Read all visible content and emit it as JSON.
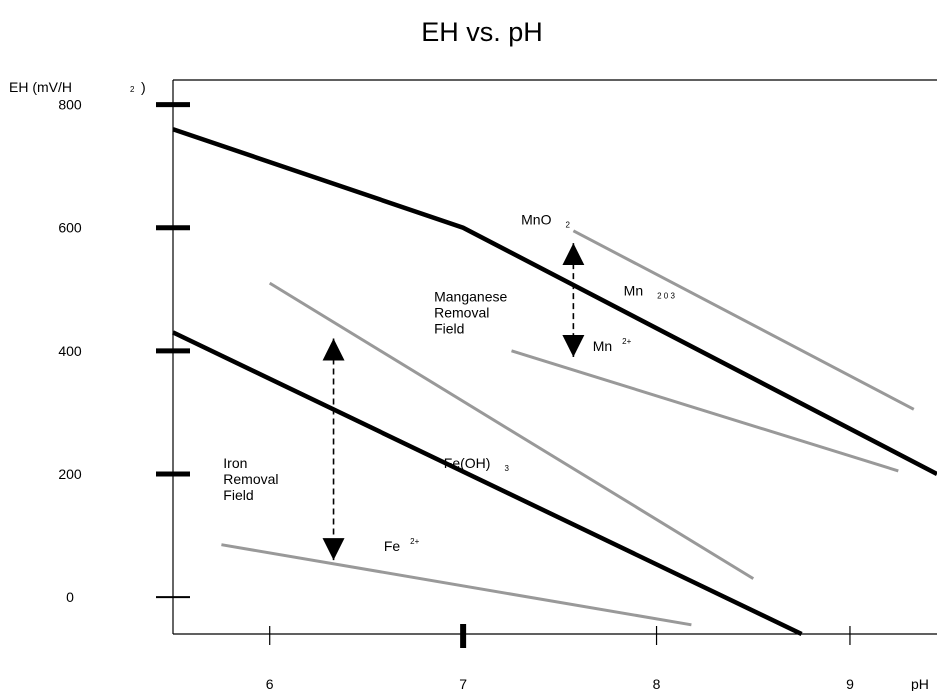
{
  "chart_data": {
    "type": "line",
    "title": "EH vs. pH",
    "ylabel": "EH (mV/H",
    "ylabel_sub": "2",
    "ylabel_close": ")",
    "xlabel": "pH",
    "xlim": [
      5.5,
      9.45
    ],
    "ylim": [
      -60,
      840
    ],
    "x_ticks": [
      6,
      7,
      8,
      9
    ],
    "x_tick_labels": [
      "6",
      "7",
      "8",
      "9"
    ],
    "y_ticks": [
      800,
      600,
      400,
      200,
      0
    ],
    "y_tick_labels": [
      "800",
      "600",
      "400",
      "200",
      "0"
    ],
    "grid": false,
    "series": [
      {
        "color": "#000000",
        "weight": "heavy",
        "points": [
          [
            5.5,
            760
          ],
          [
            7.0,
            600
          ],
          [
            9.45,
            200
          ]
        ]
      },
      {
        "color": "#000000",
        "weight": "heavy",
        "points": [
          [
            5.5,
            430
          ],
          [
            8.75,
            -60
          ]
        ]
      },
      {
        "color": "#999999",
        "weight": "light",
        "points": [
          [
            7.57,
            595
          ],
          [
            9.33,
            305
          ]
        ]
      },
      {
        "color": "#999999",
        "weight": "light",
        "points": [
          [
            7.25,
            400
          ],
          [
            9.25,
            205
          ]
        ]
      },
      {
        "color": "#999999",
        "weight": "light",
        "points": [
          [
            6.0,
            510
          ],
          [
            8.5,
            30
          ]
        ]
      },
      {
        "color": "#999999",
        "weight": "light",
        "points": [
          [
            5.75,
            85
          ],
          [
            8.18,
            -45
          ]
        ]
      }
    ],
    "arrows": [
      {
        "x": 6.33,
        "y_from": 420,
        "y_to": 60
      },
      {
        "x": 7.57,
        "y_from": 575,
        "y_to": 390
      }
    ],
    "annotations": [
      {
        "text": "MnO",
        "sub": "2",
        "x": 7.3,
        "y": 605
      },
      {
        "text": "Mn",
        "sub": "2 0 3",
        "x": 7.83,
        "y": 490
      },
      {
        "text": "Mn",
        "sup": "2+",
        "x": 7.67,
        "y": 400
      },
      {
        "text": "Fe(OH)",
        "sub": "3",
        "x": 6.9,
        "y": 210
      },
      {
        "text": "Fe",
        "sup": "2+",
        "x": 6.59,
        "y": 75
      },
      {
        "lines": [
          "Manganese",
          "Removal",
          "Field"
        ],
        "x": 6.85,
        "y": 480
      },
      {
        "lines": [
          "Iron",
          "Removal",
          "Field"
        ],
        "x": 5.76,
        "y": 210
      }
    ]
  }
}
